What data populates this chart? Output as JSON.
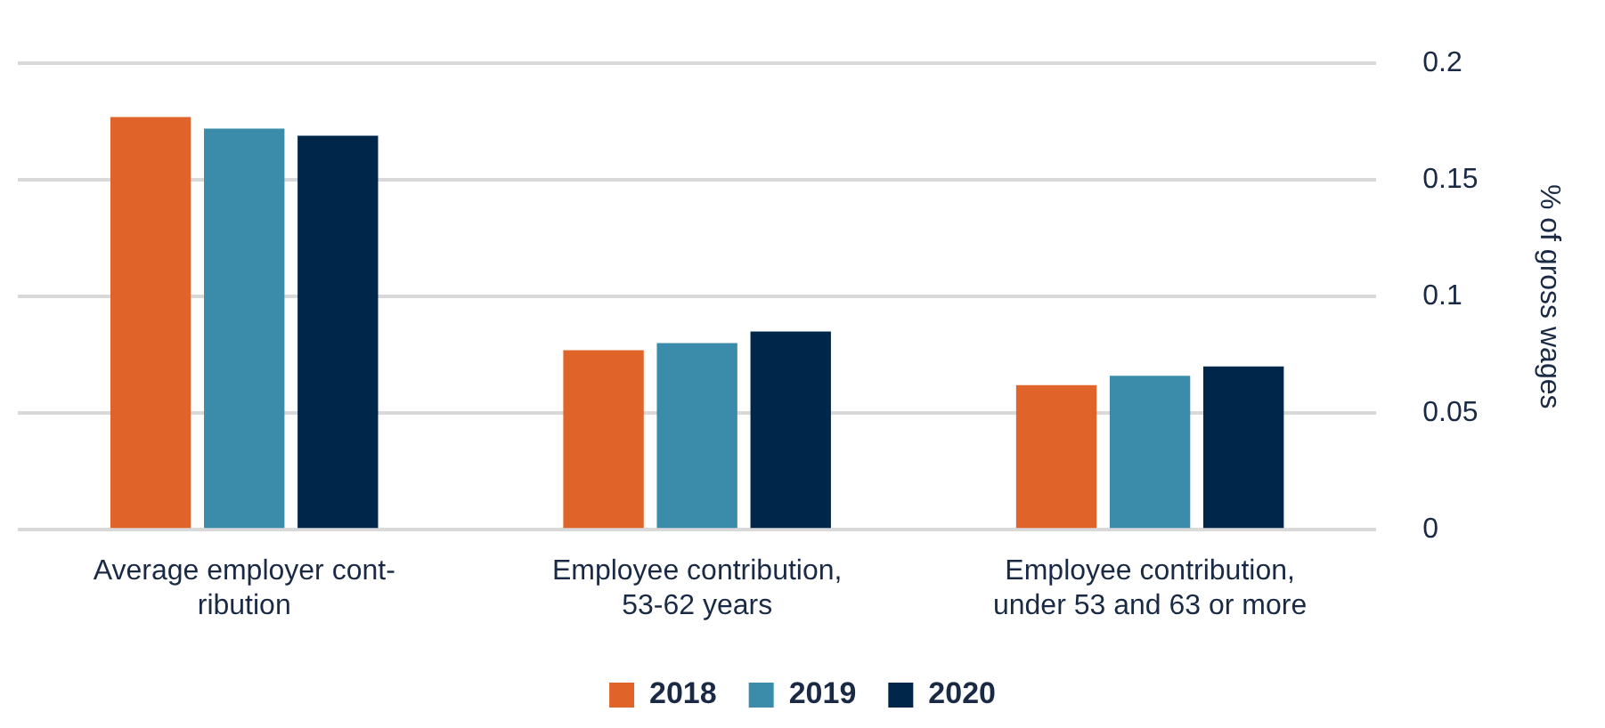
{
  "chart_data": {
    "type": "bar",
    "ylabel": "% of gross wages",
    "categories": [
      "Average employer cont-\nribution",
      "Employee contribution,\n53-62 years",
      "Employee contribution,\nunder 53 and 63 or more"
    ],
    "series": [
      {
        "name": "2018",
        "color": "#e0642a",
        "values": [
          0.177,
          0.077,
          0.062
        ]
      },
      {
        "name": "2019",
        "color": "#3a8caa",
        "values": [
          0.172,
          0.08,
          0.066
        ]
      },
      {
        "name": "2020",
        "color": "#00264a",
        "values": [
          0.169,
          0.085,
          0.07
        ]
      }
    ],
    "ylim": [
      0,
      0.2
    ],
    "yticks": [
      0,
      0.05,
      0.1,
      0.15,
      0.2
    ],
    "grid": "y",
    "legend": "bottom"
  }
}
